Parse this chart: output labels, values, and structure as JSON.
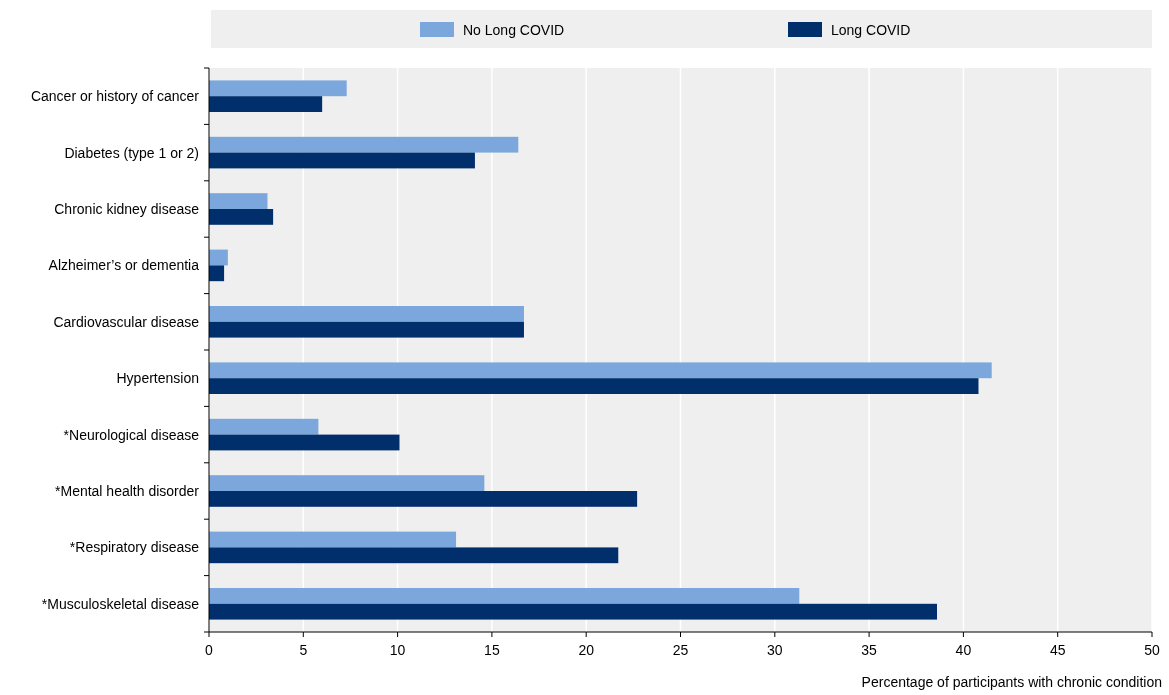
{
  "chart_data": {
    "type": "bar",
    "orientation": "horizontal",
    "xlabel": "Percentage of participants with chronic condition",
    "categories": [
      "Cancer or history of cancer",
      "Diabetes (type 1 or 2)",
      "Chronic kidney disease",
      "Alzheimer’s or dementia",
      "Cardiovascular disease",
      "Hypertension",
      "*Neurological disease",
      "*Mental health disorder",
      "*Respiratory disease",
      "*Musculoskeletal disease"
    ],
    "series": [
      {
        "name": "No Long COVID",
        "color": "#7ba7dc",
        "values": [
          7.3,
          16.4,
          3.1,
          1.0,
          16.7,
          41.5,
          5.8,
          14.6,
          13.1,
          31.3
        ]
      },
      {
        "name": "Long COVID",
        "color": "#002f6c",
        "values": [
          6.0,
          14.1,
          3.4,
          0.8,
          16.7,
          40.8,
          10.1,
          22.7,
          21.7,
          38.6
        ]
      }
    ],
    "xlim": [
      0,
      50
    ],
    "xticks": [
      0,
      5,
      10,
      15,
      20,
      25,
      30,
      35,
      40,
      45,
      50
    ],
    "grid": "x",
    "legend": "top"
  }
}
